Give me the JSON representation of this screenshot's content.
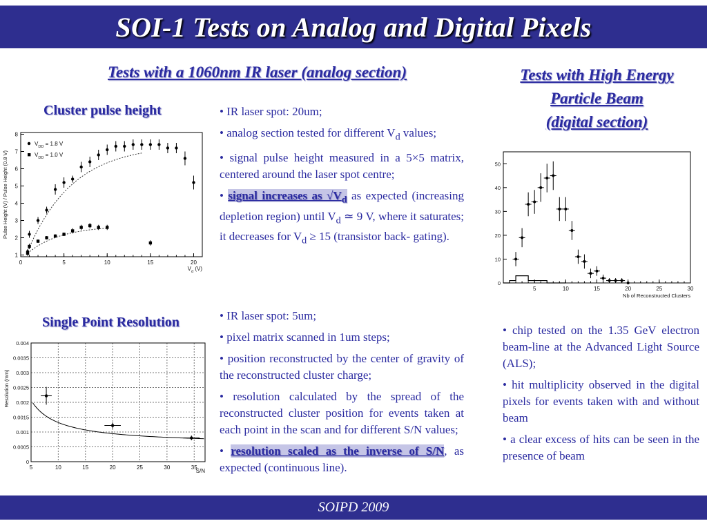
{
  "slide": {
    "title": "SOI-1 Tests on Analog and Digital Pixels",
    "footer": "SOIPD 2009",
    "colors": {
      "bar": "#2e2e8f",
      "text": "#2a2aa0"
    }
  },
  "left_heading": "Tests with a 1060nm IR laser (analog section)",
  "right_heading": [
    "Tests with High Energy",
    "Particle Beam",
    "(digital section)"
  ],
  "cluster_label": "Cluster pulse height",
  "single_point_label": "Single Point Resolution",
  "bullets_top": [
    {
      "text": "IR laser spot: 20um;"
    },
    {
      "pre": "analog section tested for different V",
      "sub": "d",
      "post": " values;"
    },
    {
      "text": "signal pulse height measured in a 5×5 matrix, centered around the laser spot centre;"
    },
    {
      "hl": "signal increases as √V",
      "hlsub": "d",
      "p1": " as expected (increasing depletion region) until V",
      "s1": "d",
      "p2": " ≃ 9 V, where it saturates; it decreases for V",
      "s2": "d",
      "p3": " ≥ 15 (transistor back- gating)."
    }
  ],
  "bullets_bottom": [
    {
      "text": "IR laser spot: 5um;"
    },
    {
      "text": "pixel matrix scanned in 1um steps;"
    },
    {
      "text": "position reconstructed by the center of gravity of the reconstructed cluster charge;"
    },
    {
      "text": "resolution calculated by the spread of the reconstructed cluster position for events taken at each point in the scan and for different S/N values;"
    },
    {
      "hl": "resolution scaled as the inverse of S/N",
      "post": ", as expected (continuous line)."
    }
  ],
  "bullets_right": [
    {
      "text": "chip tested on the 1.35 GeV electron beam-line at the Advanced Light Source (ALS);"
    },
    {
      "text": "hit multiplicity observed in the digital pixels for events taken with and without beam"
    },
    {
      "text": "a clear excess of hits can be seen in the presence of beam"
    }
  ],
  "chart_data": [
    {
      "id": "pulse_height",
      "type": "scatter",
      "ylabel": "Pulse Height (V) / Pulse Height (0.8 V)",
      "xlabel": "V_d (V)",
      "xlim": [
        0,
        21
      ],
      "ylim": [
        0.9,
        8.1
      ],
      "xticks": [
        "0",
        "5",
        "10",
        "15",
        "20"
      ],
      "yticks": [
        "1",
        "2",
        "3",
        "4",
        "5",
        "6",
        "7",
        "8"
      ],
      "legend": [
        "V_DD = 1.8 V",
        "V_DD = 1.0 V"
      ],
      "series": [
        {
          "name": "V_DD = 1.8 V",
          "marker": "dot",
          "x": [
            0.8,
            1,
            2,
            3,
            4,
            5,
            6,
            7,
            8,
            9,
            10,
            11,
            12,
            13,
            14,
            15,
            16,
            17,
            18,
            19,
            20
          ],
          "y": [
            1.2,
            2.2,
            3.0,
            3.6,
            4.8,
            5.2,
            5.4,
            6.1,
            6.4,
            6.8,
            7.1,
            7.3,
            7.3,
            7.4,
            7.4,
            7.4,
            7.4,
            7.2,
            7.2,
            6.6,
            5.2
          ],
          "err": [
            0.15,
            0.2,
            0.2,
            0.2,
            0.3,
            0.3,
            0.2,
            0.3,
            0.3,
            0.3,
            0.3,
            0.3,
            0.3,
            0.3,
            0.3,
            0.3,
            0.3,
            0.3,
            0.3,
            0.4,
            0.4
          ]
        },
        {
          "name": "V_DD = 1.0 V",
          "marker": "square",
          "x": [
            0.8,
            1,
            2,
            3,
            4,
            5,
            6,
            7,
            8,
            9,
            10,
            15
          ],
          "y": [
            1.1,
            1.5,
            1.8,
            2.0,
            2.1,
            2.2,
            2.4,
            2.6,
            2.7,
            2.6,
            2.6,
            1.7
          ],
          "err": [
            0.15,
            0.15,
            0.1,
            0.1,
            0.1,
            0.1,
            0.15,
            0.15,
            0.15,
            0.15,
            0.15,
            0.15
          ]
        }
      ]
    },
    {
      "id": "resolution",
      "type": "scatter",
      "ylabel": "Resolution (mm)",
      "xlabel": "S/N",
      "xlim": [
        5,
        37
      ],
      "ylim": [
        0,
        0.004
      ],
      "grid": true,
      "xticks": [
        "5",
        "10",
        "15",
        "20",
        "25",
        "30",
        "35"
      ],
      "yticks": [
        "0",
        "0.0005",
        "0.001",
        "0.0015",
        "0.002",
        "0.0025",
        "0.003",
        "0.0035",
        "0.004"
      ],
      "points": [
        {
          "x": 7.8,
          "y": 0.00222,
          "xerr": 1.0,
          "yerr": 0.0003
        },
        {
          "x": 20.0,
          "y": 0.00122,
          "xerr": 1.5,
          "yerr": 0.0001
        },
        {
          "x": 34.5,
          "y": 0.0008,
          "xerr": 1.5,
          "yerr": 8e-05
        }
      ],
      "fit": "inverse"
    },
    {
      "id": "clusters",
      "type": "scatter",
      "xlabel": "Nb of Reconstructed Clusters",
      "xlim": [
        0,
        30
      ],
      "ylim": [
        0,
        55
      ],
      "xticks": [
        "5",
        "10",
        "15",
        "20",
        "25",
        "30"
      ],
      "yticks": [
        "0",
        "10",
        "20",
        "30",
        "40",
        "50"
      ],
      "x": [
        2,
        3,
        4,
        5,
        6,
        7,
        8,
        9,
        10,
        11,
        12,
        13,
        14,
        15,
        16,
        17,
        18,
        19,
        20
      ],
      "y": [
        10,
        19,
        33,
        34,
        40,
        44,
        45,
        31,
        31,
        22,
        11,
        9,
        4,
        5,
        2,
        1,
        1,
        1,
        0
      ],
      "err": [
        3,
        4,
        5,
        5,
        6,
        6,
        6,
        5,
        5,
        4,
        3,
        3,
        2,
        2,
        1.5,
        1,
        1,
        1,
        0.5
      ],
      "baseline": {
        "edges": [
          0,
          1,
          2,
          3,
          4,
          5,
          6,
          7,
          8,
          9,
          10
        ],
        "values": [
          0,
          1,
          3,
          3,
          1,
          1,
          1,
          0,
          0,
          0
        ]
      }
    }
  ]
}
